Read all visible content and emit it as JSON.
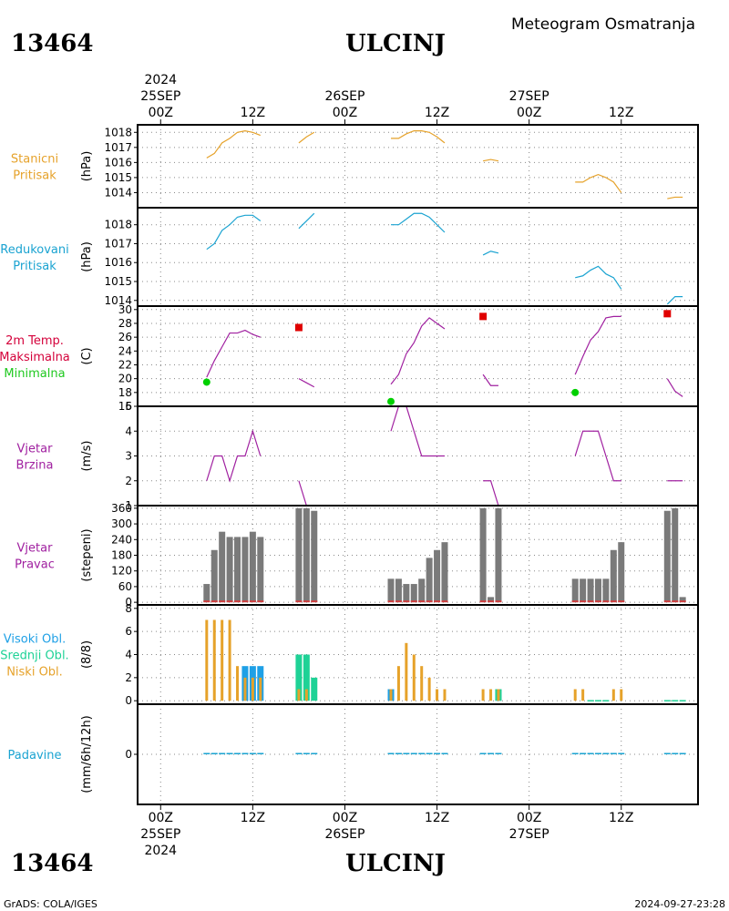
{
  "header": {
    "station_id": "13464",
    "station_name": "ULCINJ",
    "subtitle": "Meteogram Osmatranja"
  },
  "footer": {
    "left": "GrADS: COLA/IGES",
    "right": "2024-09-27-23:28"
  },
  "time_axis": {
    "year": "2024",
    "day_labels": [
      {
        "hour": 0,
        "date": "25SEP"
      },
      {
        "hour": 24,
        "date": "26SEP"
      },
      {
        "hour": 48,
        "date": "27SEP"
      }
    ],
    "hour_labels": [
      {
        "hour": 0,
        "label": "00Z"
      },
      {
        "hour": 12,
        "label": "12Z"
      },
      {
        "hour": 24,
        "label": "00Z"
      },
      {
        "hour": 36,
        "label": "12Z"
      },
      {
        "hour": 48,
        "label": "00Z"
      },
      {
        "hour": 60,
        "label": "12Z"
      }
    ],
    "range_hours": [
      -3,
      70
    ]
  },
  "colors": {
    "station_pressure": "#e6a22a",
    "reduced_pressure": "#1aa3d1",
    "max_temp": "#d4003a",
    "min_temp": "#1ec81e",
    "wind": "#a020a0",
    "wind_dir_bar": "#7a7a7a",
    "wind_dir_low": "#d04040",
    "high_cloud": "#1ea0e6",
    "mid_cloud": "#1ed296",
    "low_cloud": "#e6a22a",
    "precip": "#1aa3d1",
    "max_marker": "#e00000",
    "min_marker": "#00d000"
  },
  "chart_data": [
    {
      "type": "line",
      "panel": "station_pressure",
      "labels": [
        "Stanicni",
        "Pritisak"
      ],
      "ylabel": "(hPa)",
      "ylim": [
        1013,
        1018.5
      ],
      "yticks": [
        1014,
        1015,
        1016,
        1017,
        1018
      ],
      "grid": true,
      "series": [
        {
          "segments": [
            [
              [
                6,
                1016.3
              ],
              [
                7,
                1016.6
              ],
              [
                8,
                1017.3
              ],
              [
                9,
                1017.6
              ],
              [
                10,
                1018
              ],
              [
                11,
                1018.1
              ],
              [
                12,
                1018
              ],
              [
                13,
                1017.8
              ]
            ],
            [
              [
                18,
                1017.3
              ],
              [
                19,
                1017.7
              ],
              [
                20,
                1018
              ]
            ],
            [
              [
                30,
                1017.6
              ],
              [
                31,
                1017.6
              ],
              [
                32,
                1017.9
              ],
              [
                33,
                1018.1
              ],
              [
                34,
                1018.1
              ],
              [
                35,
                1018
              ],
              [
                36,
                1017.7
              ],
              [
                37,
                1017.3
              ]
            ],
            [
              [
                42,
                1016.1
              ],
              [
                43,
                1016.2
              ],
              [
                44,
                1016.1
              ]
            ],
            [
              [
                54,
                1014.7
              ],
              [
                55,
                1014.7
              ],
              [
                56,
                1015
              ],
              [
                57,
                1015.2
              ],
              [
                58,
                1015
              ],
              [
                59,
                1014.7
              ],
              [
                60,
                1014
              ]
            ],
            [
              [
                66,
                1013.6
              ],
              [
                67,
                1013.7
              ],
              [
                68,
                1013.7
              ]
            ]
          ]
        }
      ]
    },
    {
      "type": "line",
      "panel": "reduced_pressure",
      "labels": [
        "Redukovani",
        "Pritisak"
      ],
      "ylabel": "(hPa)",
      "ylim": [
        1013.7,
        1018.9
      ],
      "yticks": [
        1014,
        1015,
        1016,
        1017,
        1018
      ],
      "grid": true,
      "series": [
        {
          "segments": [
            [
              [
                6,
                1016.7
              ],
              [
                7,
                1017
              ],
              [
                8,
                1017.7
              ],
              [
                9,
                1018
              ],
              [
                10,
                1018.4
              ],
              [
                11,
                1018.5
              ],
              [
                12,
                1018.5
              ],
              [
                13,
                1018.2
              ]
            ],
            [
              [
                18,
                1017.8
              ],
              [
                19,
                1018.2
              ],
              [
                20,
                1018.6
              ]
            ],
            [
              [
                30,
                1018
              ],
              [
                31,
                1018
              ],
              [
                32,
                1018.3
              ],
              [
                33,
                1018.6
              ],
              [
                34,
                1018.6
              ],
              [
                35,
                1018.4
              ],
              [
                36,
                1018
              ],
              [
                37,
                1017.6
              ]
            ],
            [
              [
                42,
                1016.4
              ],
              [
                43,
                1016.6
              ],
              [
                44,
                1016.5
              ]
            ],
            [
              [
                54,
                1015.2
              ],
              [
                55,
                1015.3
              ],
              [
                56,
                1015.6
              ],
              [
                57,
                1015.8
              ],
              [
                58,
                1015.4
              ],
              [
                59,
                1015.2
              ],
              [
                60,
                1014.6
              ]
            ],
            [
              [
                66,
                1013.8
              ],
              [
                67,
                1014.2
              ],
              [
                68,
                1014.2
              ]
            ]
          ]
        }
      ]
    },
    {
      "type": "line",
      "panel": "temperature",
      "labels": [
        "2m Temp.",
        "Maksimalna",
        "Minimalna"
      ],
      "ylabel": "(C)",
      "ylim": [
        16,
        30.5
      ],
      "yticks": [
        16,
        18,
        20,
        22,
        24,
        26,
        28,
        30
      ],
      "grid": true,
      "series": [
        {
          "name": "2m Temp.",
          "segments": [
            [
              [
                6,
                20.2
              ],
              [
                7,
                22.6
              ],
              [
                8,
                24.6
              ],
              [
                9,
                26.6
              ],
              [
                10,
                26.6
              ],
              [
                11,
                27
              ],
              [
                12,
                26.4
              ],
              [
                13,
                26
              ]
            ],
            [
              [
                18,
                20
              ],
              [
                19,
                19.4
              ],
              [
                20,
                18.8
              ]
            ],
            [
              [
                30,
                19.2
              ],
              [
                31,
                20.6
              ],
              [
                32,
                23.6
              ],
              [
                33,
                25.2
              ],
              [
                34,
                27.6
              ],
              [
                35,
                28.8
              ],
              [
                36,
                28
              ],
              [
                37,
                27.2
              ]
            ],
            [
              [
                42,
                20.6
              ],
              [
                43,
                19
              ],
              [
                44,
                19
              ]
            ],
            [
              [
                54,
                20.6
              ],
              [
                55,
                23.2
              ],
              [
                56,
                25.6
              ],
              [
                57,
                26.8
              ],
              [
                58,
                28.8
              ],
              [
                59,
                29
              ],
              [
                60,
                29
              ]
            ],
            [
              [
                66,
                20
              ],
              [
                67,
                18.2
              ],
              [
                68,
                17.4
              ]
            ]
          ]
        },
        {
          "name": "Maksimalna",
          "points": [
            [
              18,
              27.4
            ],
            [
              42,
              29
            ],
            [
              66,
              29.4
            ]
          ]
        },
        {
          "name": "Minimalna",
          "points": [
            [
              6,
              19.5
            ],
            [
              30,
              16.7
            ],
            [
              54,
              18
            ]
          ]
        }
      ]
    },
    {
      "type": "line",
      "panel": "wind_speed",
      "labels": [
        "Vjetar",
        "Brzina"
      ],
      "ylabel": "(m/s)",
      "ylim": [
        1,
        5
      ],
      "yticks": [
        1,
        2,
        3,
        4,
        5
      ],
      "grid": true,
      "series": [
        {
          "segments": [
            [
              [
                6,
                2
              ],
              [
                7,
                3
              ],
              [
                8,
                3
              ],
              [
                9,
                2
              ],
              [
                10,
                3
              ],
              [
                11,
                3
              ],
              [
                12,
                4
              ],
              [
                13,
                3
              ]
            ],
            [
              [
                18,
                2
              ],
              [
                19,
                1
              ],
              [
                20,
                1
              ]
            ],
            [
              [
                30,
                4
              ],
              [
                31,
                5
              ],
              [
                32,
                5
              ],
              [
                33,
                4
              ],
              [
                34,
                3
              ],
              [
                35,
                3
              ],
              [
                36,
                3
              ],
              [
                37,
                3
              ]
            ],
            [
              [
                42,
                2
              ],
              [
                43,
                2
              ],
              [
                44,
                1
              ]
            ],
            [
              [
                54,
                3
              ],
              [
                55,
                4
              ],
              [
                56,
                4
              ],
              [
                57,
                4
              ],
              [
                58,
                3
              ],
              [
                59,
                2
              ],
              [
                60,
                2
              ]
            ],
            [
              [
                66,
                2
              ],
              [
                67,
                2
              ],
              [
                68,
                2
              ]
            ]
          ]
        }
      ]
    },
    {
      "type": "bar",
      "panel": "wind_direction",
      "labels": [
        "Vjetar",
        "Pravac"
      ],
      "ylabel": "(stepeni)",
      "ylim": [
        -10,
        370
      ],
      "yticks": [
        0,
        60,
        120,
        180,
        240,
        300,
        360
      ],
      "grid": true,
      "x": [
        6,
        7,
        8,
        9,
        10,
        11,
        12,
        13,
        18,
        19,
        20,
        30,
        31,
        32,
        33,
        34,
        35,
        36,
        37,
        42,
        43,
        44,
        54,
        55,
        56,
        57,
        58,
        59,
        60,
        66,
        67,
        68
      ],
      "values": [
        70,
        200,
        270,
        250,
        250,
        250,
        270,
        250,
        360,
        360,
        350,
        90,
        90,
        70,
        70,
        90,
        170,
        200,
        230,
        360,
        20,
        360,
        90,
        90,
        90,
        90,
        90,
        200,
        230,
        350,
        360,
        20
      ]
    },
    {
      "type": "bar",
      "panel": "cloud_cover",
      "labels": [
        "Visoki Obl.",
        "Srednji Obl.",
        "Niski Obl."
      ],
      "ylabel": "(8/8)",
      "ylim": [
        -0.3,
        8.3
      ],
      "yticks": [
        0,
        2,
        4,
        6,
        8
      ],
      "grid": true,
      "series": [
        {
          "name": "Niski Obl.",
          "x": [
            6,
            7,
            8,
            9,
            10,
            11,
            12,
            13,
            18,
            19,
            20,
            30,
            31,
            32,
            33,
            34,
            35,
            36,
            37,
            42,
            43,
            44,
            54,
            55,
            56,
            57,
            58,
            59,
            60,
            66,
            67,
            68
          ],
          "values": [
            7,
            7,
            7,
            7,
            3,
            2,
            2,
            2,
            1,
            1,
            0,
            1,
            3,
            5,
            4,
            3,
            2,
            1,
            1,
            1,
            1,
            1,
            1,
            1,
            0,
            0,
            0,
            1,
            1,
            0,
            0,
            0
          ]
        },
        {
          "name": "Srednji Obl.",
          "x": [
            6,
            7,
            8,
            9,
            10,
            11,
            12,
            13,
            18,
            19,
            20,
            30,
            31,
            32,
            33,
            34,
            35,
            36,
            37,
            42,
            43,
            44,
            54,
            55,
            56,
            57,
            58,
            59,
            60,
            66,
            67,
            68
          ],
          "values": [
            0,
            0,
            0,
            0,
            0,
            0,
            0,
            0,
            4,
            4,
            2,
            0,
            0,
            0,
            0,
            0,
            0,
            0,
            0,
            0,
            0,
            1,
            0,
            0,
            0,
            0,
            0,
            0,
            0,
            0,
            0,
            0
          ]
        },
        {
          "name": "Visoki Obl.",
          "x": [
            6,
            7,
            8,
            9,
            10,
            11,
            12,
            13,
            18,
            19,
            20,
            30,
            31,
            32,
            33,
            34,
            35,
            36,
            37,
            42,
            43,
            44,
            54,
            55,
            56,
            57,
            58,
            59,
            60,
            66,
            67,
            68
          ],
          "values": [
            0,
            0,
            0,
            0,
            0,
            3,
            3,
            3,
            0,
            0,
            0,
            1,
            0,
            0,
            0,
            0,
            0,
            0,
            0,
            0,
            0,
            1,
            0,
            0,
            0,
            0,
            0,
            0,
            0,
            0,
            0,
            0
          ]
        }
      ]
    },
    {
      "type": "bar",
      "panel": "precipitation",
      "labels": [
        "Padavine"
      ],
      "ylabel": "(mm/6h/12h)",
      "ylim": [
        -5,
        5
      ],
      "yticks": [
        0
      ],
      "grid": true,
      "x": [
        6,
        7,
        8,
        9,
        10,
        11,
        12,
        13,
        18,
        19,
        20,
        30,
        31,
        32,
        33,
        34,
        35,
        36,
        37,
        42,
        43,
        44,
        54,
        55,
        56,
        57,
        58,
        59,
        60,
        66,
        67,
        68
      ],
      "values": [
        0,
        0,
        0,
        0,
        0,
        0,
        0,
        0,
        0,
        0,
        0,
        0,
        0,
        0,
        0,
        0,
        0,
        0,
        0,
        0,
        0,
        0,
        0,
        0,
        0,
        0,
        0,
        0,
        0,
        0,
        0,
        0
      ]
    }
  ]
}
